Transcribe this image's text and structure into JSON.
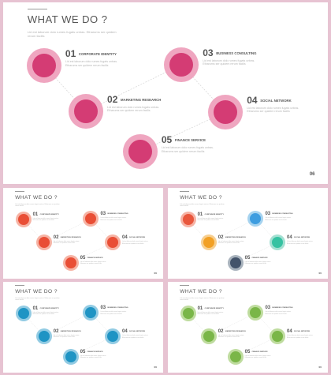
{
  "slide_title": "WHAT WE DO ?",
  "slide_subtitle": "Lid est laborum dolo rumes fugats untras. Etharums ser quidem rerum facilis",
  "page_number": "06",
  "item_body": "Lid est laborum dolo rumes fugats untras. Etharums ser quidem rerum facilis",
  "items": [
    {
      "number": "01",
      "label": "CORPORATE IDENTITY"
    },
    {
      "number": "02",
      "label": "MARKETING RESEARCH"
    },
    {
      "number": "03",
      "label": "BUSINESS CONSULTING"
    },
    {
      "number": "04",
      "label": "SOCIAL NETWORK"
    },
    {
      "number": "05",
      "label": "FINANCE SERVICE"
    }
  ],
  "colors": {
    "background": "#e7c3d2",
    "main_theme": {
      "ring": "#efa6c0",
      "core": "#d43c74"
    },
    "red_theme": {
      "ring": "#f6b3a4",
      "core": "#e94e35"
    },
    "multi_theme": [
      {
        "ring": "#f6b2a4",
        "core": "#e9573d"
      },
      {
        "ring": "#f7cf90",
        "core": "#f2a024"
      },
      {
        "ring": "#a6d3ef",
        "core": "#3e9de0"
      },
      {
        "ring": "#a4e0d2",
        "core": "#36c2a2"
      },
      {
        "ring": "#a9b3bd",
        "core": "#43536a"
      }
    ],
    "blue_theme": {
      "ring": "#92cbe3",
      "core": "#1f94c4"
    },
    "green_theme": {
      "ring": "#bfdc9f",
      "core": "#7ab648"
    }
  }
}
